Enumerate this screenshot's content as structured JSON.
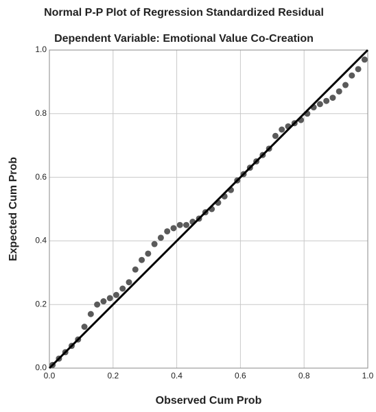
{
  "chart_data": {
    "type": "scatter",
    "title": "Normal P-P Plot of Regression Standardized Residual",
    "subtitle": "Dependent Variable: Emotional Value Co-Creation",
    "x_label": "Observed Cum Prob",
    "y_label": "Expected Cum Prob",
    "x": [
      0.01,
      0.03,
      0.05,
      0.07,
      0.09,
      0.11,
      0.13,
      0.15,
      0.17,
      0.19,
      0.21,
      0.23,
      0.25,
      0.27,
      0.29,
      0.31,
      0.33,
      0.35,
      0.37,
      0.39,
      0.41,
      0.43,
      0.45,
      0.47,
      0.49,
      0.51,
      0.53,
      0.55,
      0.57,
      0.59,
      0.61,
      0.63,
      0.65,
      0.67,
      0.69,
      0.71,
      0.73,
      0.75,
      0.77,
      0.79,
      0.81,
      0.83,
      0.85,
      0.87,
      0.89,
      0.91,
      0.93,
      0.95,
      0.97,
      0.99
    ],
    "values": [
      0.01,
      0.03,
      0.05,
      0.07,
      0.09,
      0.13,
      0.17,
      0.2,
      0.21,
      0.22,
      0.23,
      0.25,
      0.27,
      0.31,
      0.34,
      0.36,
      0.39,
      0.41,
      0.43,
      0.44,
      0.45,
      0.45,
      0.46,
      0.47,
      0.49,
      0.5,
      0.52,
      0.54,
      0.56,
      0.59,
      0.61,
      0.63,
      0.65,
      0.67,
      0.69,
      0.73,
      0.75,
      0.76,
      0.77,
      0.78,
      0.8,
      0.82,
      0.83,
      0.84,
      0.85,
      0.87,
      0.89,
      0.92,
      0.94,
      0.97
    ],
    "color": "#5a5a5a",
    "reference_line": {
      "x": [
        0,
        1
      ],
      "y": [
        0,
        1
      ],
      "color": "#000000"
    },
    "xlim": [
      0,
      1
    ],
    "ylim": [
      0,
      1
    ],
    "xticks": [
      {
        "value": 0,
        "label": "0.0"
      },
      0.2,
      0.4,
      0.6,
      0.8,
      {
        "value": 1,
        "label": "1.0"
      }
    ],
    "yticks": [
      {
        "value": 0,
        "label": "0.0"
      },
      0.2,
      0.4,
      0.6,
      0.8,
      {
        "value": 1,
        "label": "1.0"
      }
    ],
    "grid": true
  }
}
